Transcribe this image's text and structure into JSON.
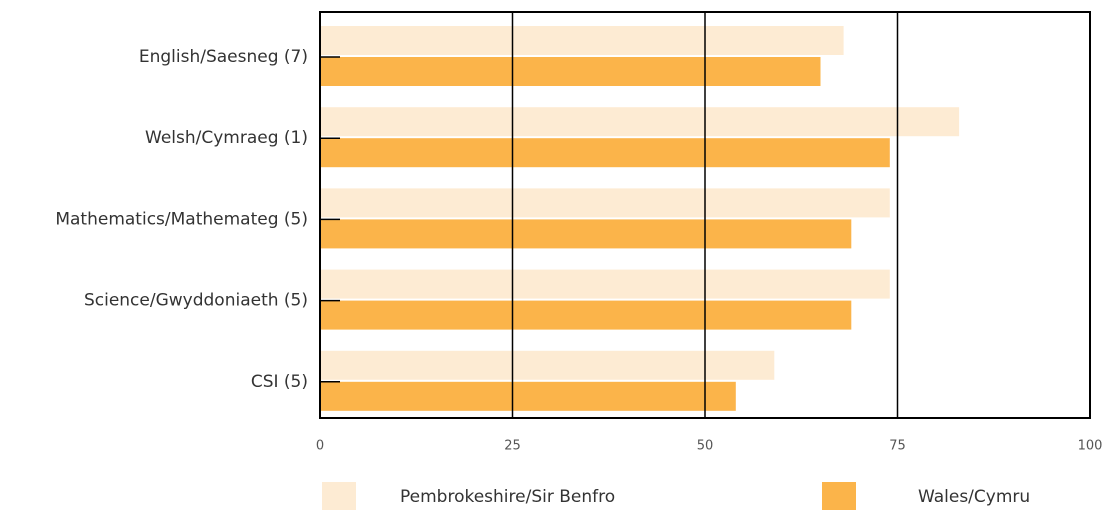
{
  "chart_data": {
    "type": "barh",
    "categories": [
      "English/Saesneg (7)",
      "Welsh/Cymraeg (1)",
      "Mathematics/Mathemateg (5)",
      "Science/Gwyddoniaeth (5)",
      "CSI (5)"
    ],
    "series": [
      {
        "name": "Pembrokeshire/Sir Benfro",
        "color": "#fdebd3",
        "values": [
          68,
          83,
          74,
          74,
          59
        ]
      },
      {
        "name": "Wales/Cymru",
        "color": "#fbb44a",
        "values": [
          65,
          74,
          69,
          69,
          54
        ]
      }
    ],
    "xlim": [
      0,
      100
    ],
    "xticks": [
      0,
      25,
      50,
      75,
      100
    ],
    "grid": true,
    "legend": "bottom"
  }
}
